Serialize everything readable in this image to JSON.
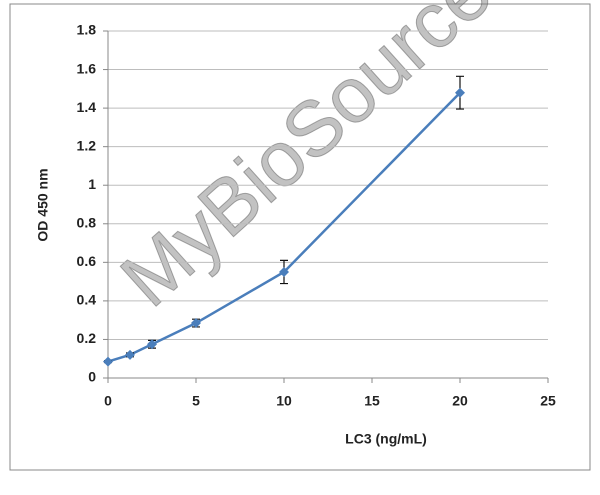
{
  "chart_data": {
    "type": "line",
    "x_label": "LC3 (ng/mL)",
    "y_label": "OD 450 nm",
    "watermark": "MyBioSource",
    "x": [
      0,
      1.25,
      2.5,
      5,
      10,
      20
    ],
    "values": [
      0.085,
      0.12,
      0.175,
      0.285,
      0.55,
      1.48
    ],
    "errors": [
      0.005,
      0.01,
      0.02,
      0.02,
      0.06,
      0.085
    ],
    "color": "#4a7ebb",
    "xlim": [
      0,
      25
    ],
    "xticks": [
      0,
      5,
      10,
      15,
      20,
      25
    ],
    "ylim": [
      0,
      1.8
    ],
    "yticks": [
      0,
      0.2,
      0.4,
      0.6,
      0.8,
      1,
      1.2,
      1.4,
      1.6,
      1.8
    ],
    "grid": true
  }
}
